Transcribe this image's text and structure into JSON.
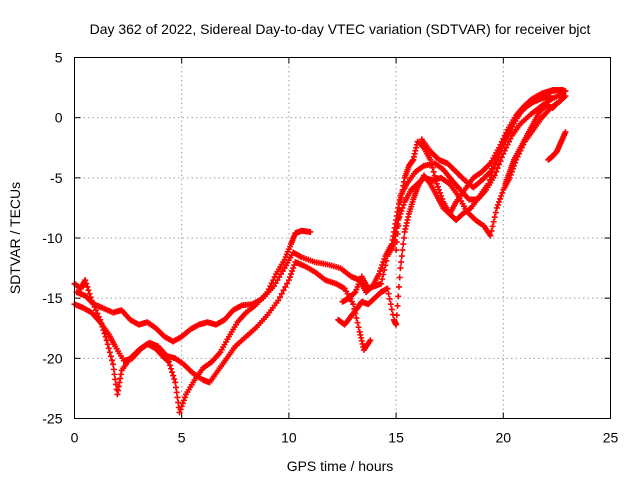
{
  "chart_data": {
    "type": "scatter",
    "title": "Day 362 of 2022, Sidereal Day-to-day VTEC variation (SDTVAR) for receiver bjct",
    "xlabel": "GPS time / hours",
    "ylabel": "SDTVAR / TECUs",
    "xlim": [
      0,
      25
    ],
    "ylim": [
      -25,
      5
    ],
    "xticks": [
      0,
      5,
      10,
      15,
      20,
      25
    ],
    "yticks": [
      -25,
      -20,
      -15,
      -10,
      -5,
      0,
      5
    ],
    "grid": true,
    "marker": "+",
    "marker_color": "#ff0000",
    "series": [
      {
        "values": [
          [
            0.0,
            -13.8
          ],
          [
            0.3,
            -14.2
          ],
          [
            0.5,
            -13.5
          ],
          [
            0.8,
            -15.2
          ],
          [
            1.2,
            -16.8
          ],
          [
            1.5,
            -18.5
          ],
          [
            1.8,
            -20.5
          ],
          [
            2.0,
            -23.0
          ],
          [
            2.2,
            -21.0
          ],
          [
            2.6,
            -20.0
          ],
          [
            3.0,
            -19.3
          ],
          [
            3.4,
            -18.8
          ],
          [
            3.8,
            -19.2
          ],
          [
            4.1,
            -19.8
          ],
          [
            4.4,
            -20.3
          ],
          [
            4.7,
            -22.0
          ],
          [
            4.9,
            -24.5
          ],
          [
            5.2,
            -23.0
          ],
          [
            5.6,
            -21.8
          ],
          [
            6.0,
            -20.8
          ],
          [
            6.4,
            -20.3
          ],
          [
            6.8,
            -19.5
          ],
          [
            7.2,
            -18.2
          ],
          [
            7.6,
            -17.0
          ],
          [
            8.0,
            -16.2
          ],
          [
            8.5,
            -15.5
          ],
          [
            9.0,
            -14.5
          ],
          [
            9.4,
            -13.0
          ],
          [
            9.8,
            -11.8
          ],
          [
            10.1,
            -10.5
          ],
          [
            10.3,
            -9.6
          ],
          [
            10.6,
            -9.4
          ],
          [
            11.0,
            -9.5
          ]
        ]
      },
      {
        "values": [
          [
            0.0,
            -15.5
          ],
          [
            0.4,
            -15.8
          ],
          [
            0.8,
            -16.2
          ],
          [
            1.2,
            -17.0
          ],
          [
            1.6,
            -18.0
          ],
          [
            1.9,
            -19.0
          ],
          [
            2.3,
            -20.2
          ],
          [
            2.7,
            -20.0
          ],
          [
            3.1,
            -19.2
          ],
          [
            3.5,
            -18.7
          ],
          [
            3.9,
            -19.0
          ],
          [
            4.3,
            -19.8
          ],
          [
            4.7,
            -20.0
          ],
          [
            5.1,
            -20.5
          ],
          [
            5.5,
            -21.2
          ],
          [
            6.0,
            -21.8
          ],
          [
            6.3,
            -22.0
          ],
          [
            6.7,
            -21.0
          ],
          [
            7.1,
            -20.0
          ],
          [
            7.5,
            -19.0
          ],
          [
            8.0,
            -18.2
          ],
          [
            8.5,
            -17.4
          ],
          [
            9.0,
            -16.4
          ],
          [
            9.5,
            -15.2
          ],
          [
            10.0,
            -13.5
          ],
          [
            10.3,
            -12.0
          ],
          [
            10.7,
            -12.3
          ],
          [
            11.2,
            -12.8
          ],
          [
            11.7,
            -13.5
          ],
          [
            12.2,
            -13.8
          ],
          [
            12.6,
            -14.2
          ],
          [
            13.0,
            -15.5
          ],
          [
            13.3,
            -17.8
          ],
          [
            13.5,
            -19.3
          ],
          [
            13.8,
            -18.5
          ]
        ]
      },
      {
        "values": [
          [
            0.1,
            -14.5
          ],
          [
            0.5,
            -14.8
          ],
          [
            0.9,
            -15.5
          ],
          [
            1.3,
            -15.8
          ],
          [
            1.8,
            -16.2
          ],
          [
            2.2,
            -16.0
          ],
          [
            2.6,
            -16.8
          ],
          [
            3.0,
            -17.2
          ],
          [
            3.4,
            -17.0
          ],
          [
            3.8,
            -17.5
          ],
          [
            4.2,
            -18.2
          ],
          [
            4.6,
            -18.6
          ],
          [
            5.0,
            -18.2
          ],
          [
            5.4,
            -17.6
          ],
          [
            5.8,
            -17.2
          ],
          [
            6.2,
            -17.0
          ],
          [
            6.6,
            -17.2
          ],
          [
            7.0,
            -16.8
          ],
          [
            7.4,
            -16.0
          ],
          [
            7.8,
            -15.6
          ],
          [
            8.3,
            -15.5
          ],
          [
            8.8,
            -15.0
          ],
          [
            9.3,
            -14.0
          ],
          [
            9.8,
            -12.5
          ],
          [
            10.2,
            -11.2
          ],
          [
            10.6,
            -11.6
          ],
          [
            11.2,
            -12.0
          ],
          [
            11.8,
            -12.2
          ],
          [
            12.4,
            -12.5
          ],
          [
            12.9,
            -13.2
          ],
          [
            13.3,
            -13.5
          ],
          [
            13.6,
            -14.5
          ],
          [
            13.9,
            -14.0
          ],
          [
            14.2,
            -13.0
          ],
          [
            14.5,
            -11.5
          ],
          [
            14.8,
            -10.5
          ],
          [
            15.0,
            -8.5
          ],
          [
            15.2,
            -6.5
          ],
          [
            15.5,
            -5.5
          ],
          [
            15.9,
            -4.5
          ],
          [
            16.3,
            -4.0
          ],
          [
            16.8,
            -3.8
          ],
          [
            17.2,
            -4.3
          ],
          [
            17.6,
            -5.2
          ],
          [
            18.0,
            -6.0
          ],
          [
            18.4,
            -6.8
          ],
          [
            18.8,
            -6.8
          ],
          [
            19.2,
            -6.0
          ],
          [
            19.6,
            -4.8
          ],
          [
            20.0,
            -3.0
          ],
          [
            20.4,
            -1.5
          ],
          [
            20.8,
            -0.5
          ],
          [
            21.3,
            0.3
          ],
          [
            21.8,
            1.0
          ],
          [
            22.3,
            1.6
          ],
          [
            22.8,
            2.0
          ]
        ]
      },
      {
        "values": [
          [
            12.5,
            -15.3
          ],
          [
            12.8,
            -15.0
          ],
          [
            13.1,
            -14.5
          ],
          [
            13.4,
            -13.2
          ],
          [
            13.7,
            -14.2
          ],
          [
            14.0,
            -14.0
          ],
          [
            14.3,
            -13.8
          ],
          [
            14.6,
            -11.5
          ],
          [
            14.9,
            -10.5
          ],
          [
            15.1,
            -8.5
          ],
          [
            15.4,
            -7.0
          ],
          [
            15.7,
            -6.0
          ],
          [
            16.0,
            -5.5
          ],
          [
            16.3,
            -5.0
          ],
          [
            16.7,
            -5.2
          ],
          [
            17.1,
            -5.0
          ],
          [
            17.5,
            -5.5
          ],
          [
            17.9,
            -6.5
          ],
          [
            18.3,
            -7.8
          ],
          [
            18.7,
            -8.5
          ],
          [
            19.1,
            -9.0
          ],
          [
            19.4,
            -9.8
          ],
          [
            19.7,
            -7.5
          ],
          [
            20.0,
            -6.0
          ],
          [
            20.3,
            -5.0
          ],
          [
            20.6,
            -3.5
          ],
          [
            21.0,
            -2.0
          ],
          [
            21.4,
            -1.0
          ],
          [
            21.8,
            0.0
          ],
          [
            22.2,
            0.8
          ],
          [
            22.6,
            1.3
          ],
          [
            22.9,
            1.8
          ]
        ]
      },
      {
        "values": [
          [
            12.3,
            -16.8
          ],
          [
            12.6,
            -17.2
          ],
          [
            12.9,
            -16.5
          ],
          [
            13.2,
            -15.8
          ],
          [
            13.4,
            -15.3
          ],
          [
            13.7,
            -15.5
          ],
          [
            14.0,
            -15.0
          ],
          [
            14.3,
            -14.5
          ],
          [
            14.6,
            -14.2
          ],
          [
            14.9,
            -16.8
          ],
          [
            15.0,
            -17.2
          ],
          [
            15.2,
            -12.5
          ],
          [
            15.4,
            -9.5
          ],
          [
            15.6,
            -8.0
          ],
          [
            15.8,
            -6.8
          ],
          [
            16.0,
            -5.8
          ],
          [
            16.3,
            -4.8
          ],
          [
            16.6,
            -5.5
          ],
          [
            16.9,
            -6.5
          ],
          [
            17.2,
            -7.5
          ],
          [
            17.5,
            -8.0
          ],
          [
            17.8,
            -7.0
          ],
          [
            18.2,
            -6.0
          ],
          [
            18.6,
            -5.0
          ],
          [
            19.0,
            -4.5
          ],
          [
            19.4,
            -3.8
          ],
          [
            19.8,
            -2.5
          ],
          [
            20.2,
            -1.0
          ],
          [
            20.6,
            0.2
          ],
          [
            21.0,
            1.0
          ],
          [
            21.4,
            1.6
          ],
          [
            21.8,
            2.0
          ],
          [
            22.2,
            2.2
          ],
          [
            22.6,
            2.3
          ],
          [
            22.9,
            2.2
          ]
        ]
      },
      {
        "values": [
          [
            15.0,
            -11.0
          ],
          [
            15.2,
            -7.0
          ],
          [
            15.4,
            -5.0
          ],
          [
            15.6,
            -4.0
          ],
          [
            15.8,
            -3.5
          ],
          [
            16.0,
            -2.0
          ],
          [
            16.3,
            -2.5
          ],
          [
            16.6,
            -3.5
          ],
          [
            16.9,
            -5.5
          ],
          [
            17.2,
            -7.0
          ],
          [
            17.5,
            -8.0
          ],
          [
            17.8,
            -8.5
          ],
          [
            18.1,
            -8.0
          ],
          [
            18.5,
            -7.5
          ],
          [
            18.9,
            -6.5
          ],
          [
            19.3,
            -5.5
          ],
          [
            19.7,
            -3.5
          ],
          [
            20.1,
            -2.0
          ],
          [
            20.5,
            -0.5
          ],
          [
            20.9,
            0.8
          ],
          [
            21.3,
            1.5
          ],
          [
            21.8,
            2.0
          ],
          [
            22.3,
            2.3
          ],
          [
            22.8,
            2.3
          ]
        ]
      },
      {
        "values": [
          [
            16.2,
            -1.8
          ],
          [
            16.6,
            -2.8
          ],
          [
            17.0,
            -3.5
          ],
          [
            17.4,
            -3.8
          ],
          [
            17.8,
            -4.5
          ],
          [
            18.2,
            -5.2
          ],
          [
            18.6,
            -5.8
          ],
          [
            19.0,
            -5.2
          ],
          [
            19.4,
            -4.5
          ],
          [
            19.8,
            -3.0
          ],
          [
            20.2,
            -1.5
          ],
          [
            20.6,
            0.0
          ],
          [
            21.0,
            0.8
          ],
          [
            21.4,
            1.3
          ],
          [
            21.8,
            1.6
          ],
          [
            22.2,
            1.8
          ]
        ]
      },
      {
        "values": [
          [
            20.1,
            -5.5
          ],
          [
            20.3,
            -4.5
          ],
          [
            20.5,
            -3.5
          ],
          [
            20.8,
            -2.5
          ],
          [
            21.1,
            -1.5
          ],
          [
            21.4,
            -0.5
          ],
          [
            21.7,
            0.5
          ],
          [
            22.0,
            1.0
          ],
          [
            22.3,
            0.8
          ],
          [
            22.5,
            1.2
          ]
        ]
      },
      {
        "values": [
          [
            22.1,
            -3.5
          ],
          [
            22.3,
            -3.2
          ],
          [
            22.5,
            -2.8
          ],
          [
            22.7,
            -2.0
          ],
          [
            22.9,
            -1.2
          ]
        ]
      }
    ]
  }
}
